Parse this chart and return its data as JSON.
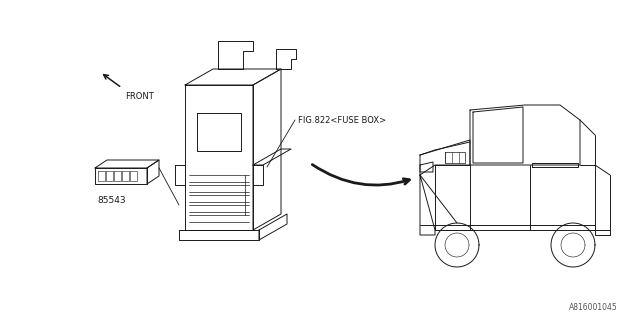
{
  "bg_color": "#ffffff",
  "line_color": "#1a1a1a",
  "fig_width": 6.4,
  "fig_height": 3.2,
  "dpi": 100,
  "front_label": "FRONT",
  "fuse_box_label": "FIG.822<FUSE BOX>",
  "part_number_label": "85543",
  "diagram_id": "A816001045"
}
